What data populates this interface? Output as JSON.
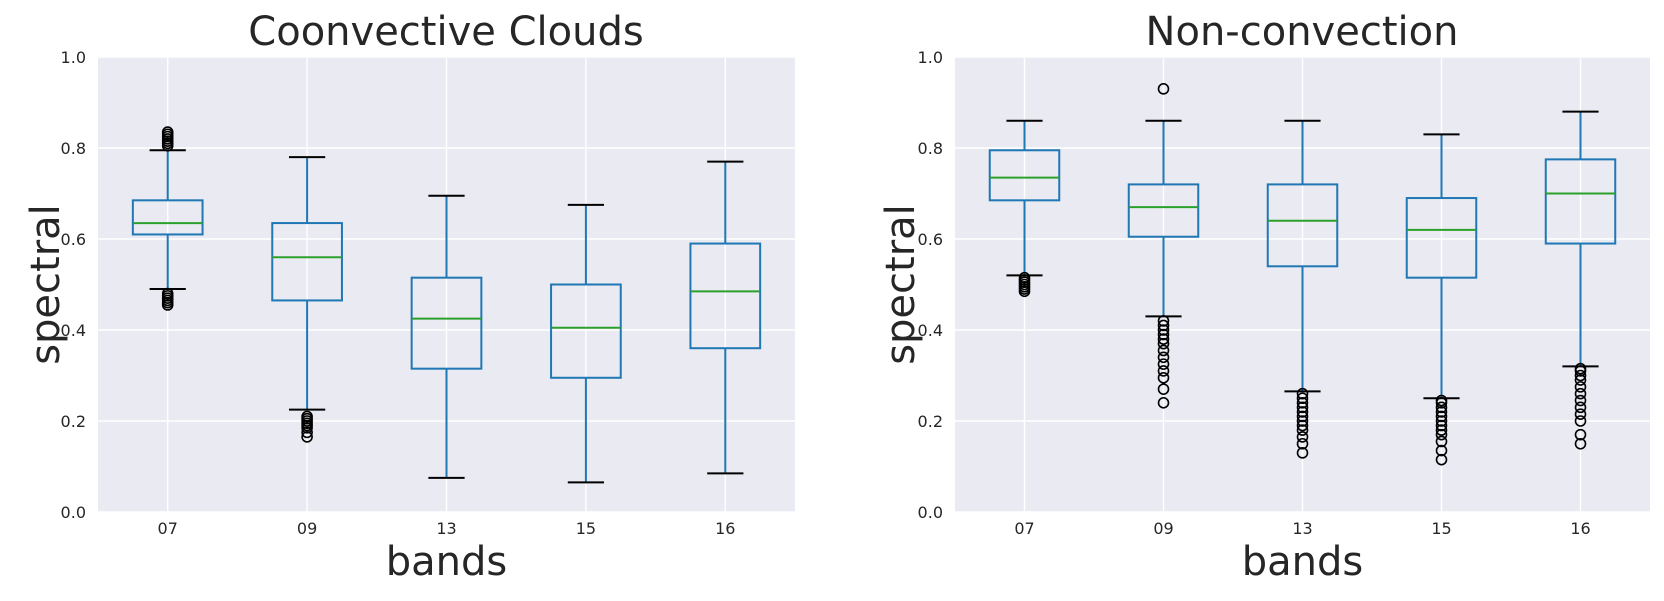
{
  "chart_data": [
    {
      "type": "box",
      "title": "Coonvective Clouds",
      "xlabel": "bands",
      "ylabel": "spectral",
      "ylim": [
        0,
        1
      ],
      "yticks": [
        "0.0",
        "0.2",
        "0.4",
        "0.6",
        "0.8",
        "1.0"
      ],
      "ytick_values": [
        0,
        0.2,
        0.4,
        0.6,
        0.8,
        1.0
      ],
      "grid": true,
      "categories": [
        "07",
        "09",
        "13",
        "15",
        "16"
      ],
      "boxes": [
        {
          "band": "07",
          "whisker_low": 0.49,
          "q1": 0.61,
          "median": 0.635,
          "q3": 0.685,
          "whisker_high": 0.795,
          "outliers": [
            0.455,
            0.46,
            0.465,
            0.47,
            0.475,
            0.48,
            0.805,
            0.81,
            0.815,
            0.82,
            0.825,
            0.83,
            0.835
          ]
        },
        {
          "band": "09",
          "whisker_low": 0.225,
          "q1": 0.465,
          "median": 0.56,
          "q3": 0.635,
          "whisker_high": 0.78,
          "outliers": [
            0.165,
            0.175,
            0.185,
            0.19,
            0.195,
            0.2,
            0.205,
            0.21
          ]
        },
        {
          "band": "13",
          "whisker_low": 0.075,
          "q1": 0.315,
          "median": 0.425,
          "q3": 0.515,
          "whisker_high": 0.695,
          "outliers": []
        },
        {
          "band": "15",
          "whisker_low": 0.065,
          "q1": 0.295,
          "median": 0.405,
          "q3": 0.5,
          "whisker_high": 0.675,
          "outliers": []
        },
        {
          "band": "16",
          "whisker_low": 0.085,
          "q1": 0.36,
          "median": 0.485,
          "q3": 0.59,
          "whisker_high": 0.77,
          "outliers": []
        }
      ]
    },
    {
      "type": "box",
      "title": "Non-convection",
      "xlabel": "bands",
      "ylabel": "spectral",
      "ylim": [
        0,
        1
      ],
      "yticks": [
        "0.0",
        "0.2",
        "0.4",
        "0.6",
        "0.8",
        "1.0"
      ],
      "ytick_values": [
        0,
        0.2,
        0.4,
        0.6,
        0.8,
        1.0
      ],
      "grid": true,
      "categories": [
        "07",
        "09",
        "13",
        "15",
        "16"
      ],
      "boxes": [
        {
          "band": "07",
          "whisker_low": 0.52,
          "q1": 0.685,
          "median": 0.735,
          "q3": 0.795,
          "whisker_high": 0.86,
          "outliers": [
            0.485,
            0.49,
            0.495,
            0.5,
            0.505,
            0.51,
            0.515
          ]
        },
        {
          "band": "09",
          "whisker_low": 0.43,
          "q1": 0.605,
          "median": 0.67,
          "q3": 0.72,
          "whisker_high": 0.86,
          "outliers": [
            0.24,
            0.27,
            0.295,
            0.31,
            0.325,
            0.34,
            0.355,
            0.37,
            0.38,
            0.39,
            0.4,
            0.41,
            0.42,
            0.93
          ]
        },
        {
          "band": "13",
          "whisker_low": 0.265,
          "q1": 0.54,
          "median": 0.64,
          "q3": 0.72,
          "whisker_high": 0.86,
          "outliers": [
            0.13,
            0.15,
            0.165,
            0.18,
            0.19,
            0.2,
            0.21,
            0.22,
            0.23,
            0.24,
            0.25,
            0.26
          ]
        },
        {
          "band": "15",
          "whisker_low": 0.25,
          "q1": 0.515,
          "median": 0.62,
          "q3": 0.69,
          "whisker_high": 0.83,
          "outliers": [
            0.115,
            0.135,
            0.155,
            0.17,
            0.18,
            0.19,
            0.2,
            0.21,
            0.22,
            0.23,
            0.24,
            0.245
          ]
        },
        {
          "band": "16",
          "whisker_low": 0.32,
          "q1": 0.59,
          "median": 0.7,
          "q3": 0.775,
          "whisker_high": 0.88,
          "outliers": [
            0.15,
            0.17,
            0.2,
            0.215,
            0.23,
            0.245,
            0.26,
            0.275,
            0.29,
            0.3,
            0.31,
            0.315
          ]
        }
      ]
    }
  ]
}
